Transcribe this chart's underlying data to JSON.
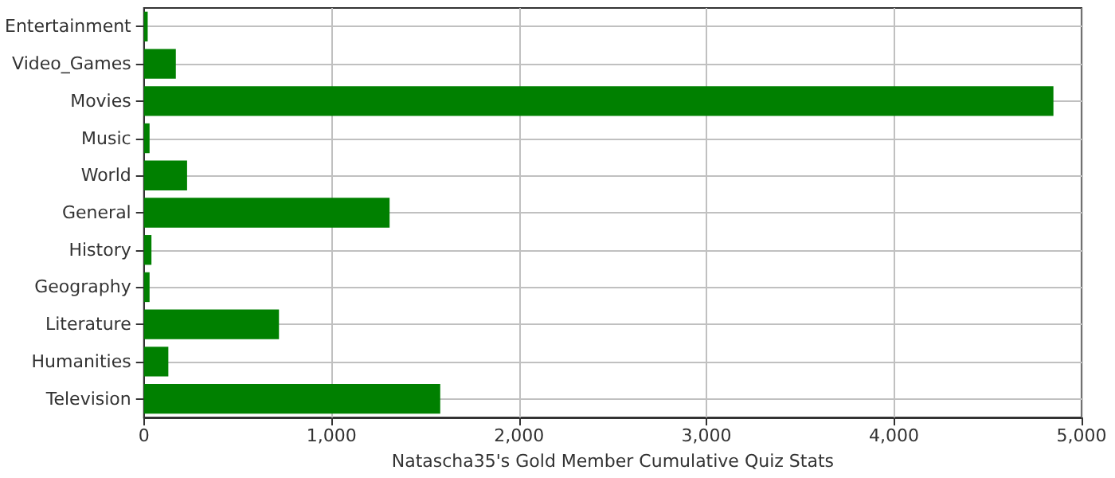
{
  "chart_data": {
    "type": "bar",
    "orientation": "horizontal",
    "xlabel": "Natascha35's Gold Member Cumulative Quiz Stats",
    "categories": [
      "Entertainment",
      "Video_Games",
      "Movies",
      "Music",
      "World",
      "General",
      "History",
      "Geography",
      "Literature",
      "Humanities",
      "Television"
    ],
    "values": [
      20,
      170,
      4850,
      30,
      230,
      1310,
      40,
      30,
      720,
      130,
      1580
    ],
    "color": "#008000",
    "xlim": [
      0,
      5000
    ],
    "xticks": [
      {
        "value": 0,
        "label": "0"
      },
      {
        "value": 1000,
        "label": "1,000"
      },
      {
        "value": 2000,
        "label": "2,000"
      },
      {
        "value": 3000,
        "label": "3,000"
      },
      {
        "value": 4000,
        "label": "4,000"
      },
      {
        "value": 5000,
        "label": "5,000"
      }
    ],
    "grid": true
  }
}
